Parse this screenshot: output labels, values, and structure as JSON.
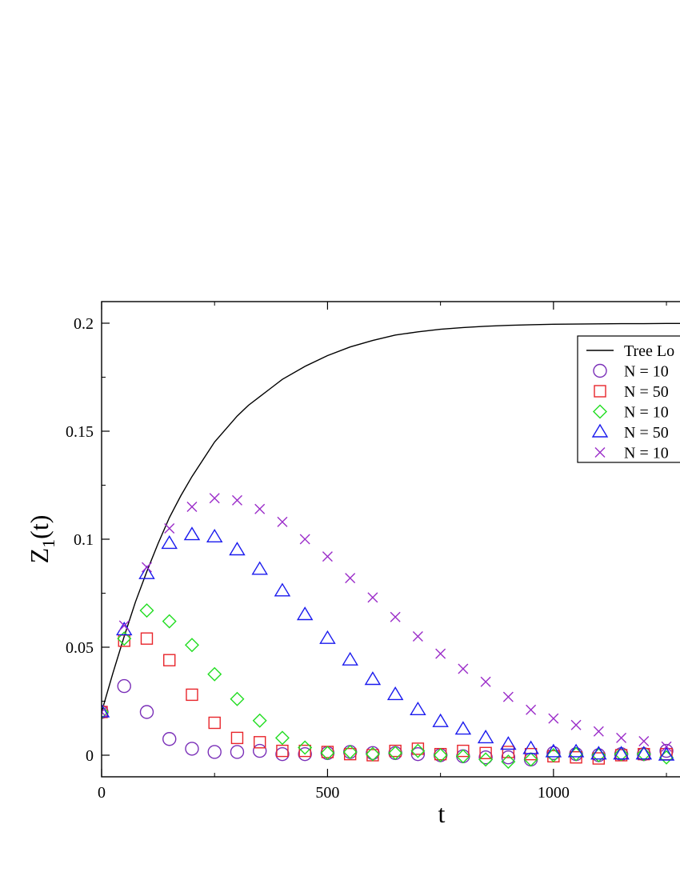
{
  "chart_data": {
    "type": "scatter",
    "xlabel": "t",
    "ylabel_main": "Z",
    "ylabel_sub": "1",
    "ylabel_suffix": "(t)",
    "xlim": [
      0,
      1280
    ],
    "ylim": [
      -0.01,
      0.21
    ],
    "xticks": [
      0,
      500,
      1000
    ],
    "yticks": [
      0,
      0.05,
      0.1,
      0.15,
      0.2
    ],
    "xtick_labels": [
      "0",
      "500",
      "1000"
    ],
    "ytick_labels": [
      "0",
      "0.05",
      "0.1",
      "0.15",
      "0.2"
    ],
    "grid": false,
    "legend_position": "top-right",
    "curve": {
      "name": "Tree Lo",
      "color": "#000000",
      "x": [
        0,
        25,
        50,
        75,
        100,
        125,
        150,
        175,
        200,
        225,
        250,
        275,
        300,
        325,
        350,
        375,
        400,
        450,
        500,
        550,
        600,
        650,
        700,
        750,
        800,
        850,
        900,
        950,
        1000,
        1050,
        1100,
        1150,
        1200,
        1250,
        1280
      ],
      "y": [
        0.02,
        0.038,
        0.055,
        0.071,
        0.085,
        0.098,
        0.11,
        0.12,
        0.129,
        0.137,
        0.145,
        0.151,
        0.157,
        0.162,
        0.166,
        0.17,
        0.174,
        0.18,
        0.185,
        0.189,
        0.192,
        0.1945,
        0.196,
        0.1972,
        0.198,
        0.1986,
        0.199,
        0.1993,
        0.1995,
        0.1996,
        0.1997,
        0.1998,
        0.1998,
        0.1999,
        0.1999
      ]
    },
    "series": [
      {
        "name": "N = 10",
        "marker": "circle",
        "color": "#7a2fb8",
        "x": [
          0,
          50,
          100,
          150,
          200,
          250,
          300,
          350,
          400,
          450,
          500,
          550,
          600,
          650,
          700,
          750,
          800,
          850,
          900,
          950,
          1000,
          1050,
          1100,
          1150,
          1200,
          1250
        ],
        "y": [
          0.02,
          0.032,
          0.02,
          0.0075,
          0.003,
          0.0015,
          0.0015,
          0.002,
          0.0005,
          0.0005,
          0.001,
          0.0015,
          0.001,
          0.001,
          0.0005,
          0.0,
          -0.0005,
          -0.001,
          -0.001,
          -0.002,
          0.001,
          0.0005,
          0.0,
          0.0005,
          0.0005,
          0.002
        ]
      },
      {
        "name": "N = 50",
        "marker": "square",
        "color": "#e8252b",
        "x": [
          0,
          50,
          100,
          150,
          200,
          250,
          300,
          350,
          400,
          450,
          500,
          550,
          600,
          650,
          700,
          750,
          800,
          850,
          900,
          950,
          1000,
          1050,
          1100,
          1150,
          1200,
          1250
        ],
        "y": [
          0.02,
          0.053,
          0.054,
          0.044,
          0.028,
          0.015,
          0.008,
          0.006,
          0.002,
          0.002,
          0.0015,
          0.0005,
          0.0,
          0.002,
          0.003,
          0.0005,
          0.002,
          0.001,
          0.0015,
          0.0005,
          -0.0005,
          -0.001,
          -0.0015,
          0.0,
          0.0005,
          0.0005
        ]
      },
      {
        "name": "N = 10",
        "marker": "diamond",
        "color": "#22dd22",
        "x": [
          0,
          50,
          100,
          150,
          200,
          250,
          300,
          350,
          400,
          450,
          500,
          550,
          600,
          650,
          700,
          750,
          800,
          850,
          900,
          950,
          1000,
          1050,
          1100,
          1150,
          1200,
          1250
        ],
        "y": [
          0.02,
          0.054,
          0.067,
          0.062,
          0.051,
          0.0375,
          0.026,
          0.016,
          0.008,
          0.0035,
          0.001,
          0.0015,
          0.0005,
          0.001,
          0.002,
          0.0,
          -0.0005,
          -0.002,
          -0.003,
          -0.002,
          0.0,
          0.0005,
          0.0,
          0.0005,
          0.0005,
          -0.001
        ]
      },
      {
        "name": "N = 50",
        "marker": "triangle",
        "color": "#1a1aee",
        "x": [
          0,
          50,
          100,
          150,
          200,
          250,
          300,
          350,
          400,
          450,
          500,
          550,
          600,
          650,
          700,
          750,
          800,
          850,
          900,
          950,
          1000,
          1050,
          1100,
          1150,
          1200,
          1250
        ],
        "y": [
          0.02,
          0.058,
          0.084,
          0.098,
          0.102,
          0.101,
          0.095,
          0.086,
          0.076,
          0.065,
          0.054,
          0.044,
          0.035,
          0.028,
          0.021,
          0.0155,
          0.012,
          0.008,
          0.005,
          0.003,
          0.0015,
          0.0015,
          0.0005,
          0.0005,
          0.0005,
          0.0
        ]
      },
      {
        "name": "N = 10",
        "marker": "cross",
        "color": "#9b2dc9",
        "x": [
          0,
          50,
          100,
          150,
          200,
          250,
          300,
          350,
          400,
          450,
          500,
          550,
          600,
          650,
          700,
          750,
          800,
          850,
          900,
          950,
          1000,
          1050,
          1100,
          1150,
          1200,
          1250
        ],
        "y": [
          0.02,
          0.06,
          0.087,
          0.105,
          0.115,
          0.119,
          0.118,
          0.114,
          0.108,
          0.1,
          0.092,
          0.082,
          0.073,
          0.064,
          0.055,
          0.047,
          0.04,
          0.034,
          0.027,
          0.021,
          0.017,
          0.014,
          0.011,
          0.008,
          0.0065,
          0.004
        ]
      }
    ]
  }
}
